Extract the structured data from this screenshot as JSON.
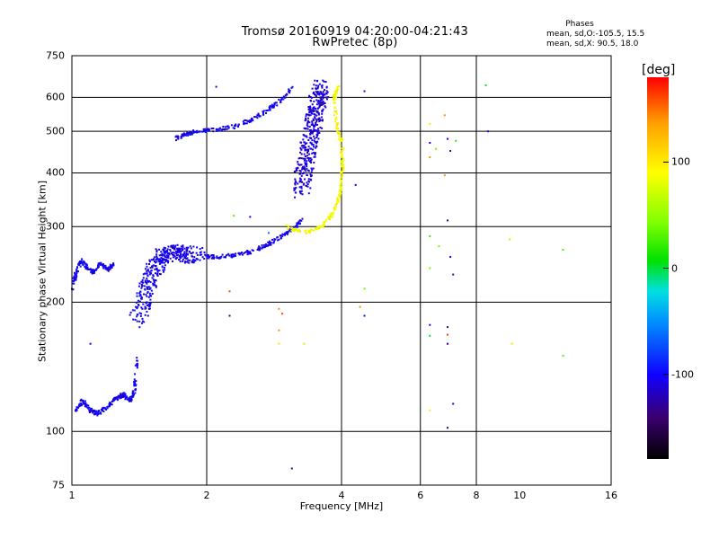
{
  "header": {
    "title_line1": "Tromsø 20160919 04:20:00-04:21:43",
    "title_line2": "RwPretec (8p)",
    "phases_title": "Phases",
    "phases_o": "mean, sd,O:-105.5, 15.5",
    "phases_x": "mean, sd,X:  90.5, 18.0"
  },
  "colorbar": {
    "title": "[deg]",
    "ticks": [
      "100",
      "0",
      "-100"
    ],
    "tick_values": [
      100,
      0,
      -100
    ],
    "range": [
      -180,
      180
    ],
    "colors": [
      "#000000",
      "#3a0070",
      "#1000ff",
      "#0090ff",
      "#00e0e0",
      "#00e000",
      "#80ff00",
      "#ffff00",
      "#ffa000",
      "#ff0000"
    ]
  },
  "chart_data": {
    "type": "scatter",
    "title": "Tromsø 20160919 04:20:00-04:21:43",
    "subtitle": "RwPretec (8p)",
    "xlabel": "Frequency [MHz]",
    "ylabel": "Stationary phase Virtual Height [km]",
    "x_scale": "log",
    "y_scale": "log",
    "xlim": [
      1,
      16
    ],
    "ylim": [
      75,
      750
    ],
    "x_ticks": [
      "1",
      "2",
      "4",
      "6",
      "8",
      "10",
      "16"
    ],
    "x_tick_values": [
      1,
      2,
      4,
      6,
      8,
      10,
      16
    ],
    "y_ticks": [
      "750",
      "600",
      "500",
      "400",
      "300",
      "200",
      "100",
      "75"
    ],
    "y_tick_values": [
      750,
      600,
      500,
      400,
      300,
      200,
      100,
      75
    ],
    "x_grid": [
      2,
      4,
      6,
      8
    ],
    "y_grid": [
      600,
      500,
      400,
      300,
      200,
      100
    ],
    "grid": true,
    "traces": [
      {
        "name": "E/Es low trace O",
        "phase": -105,
        "points": [
          [
            1.0,
            215
          ],
          [
            1.02,
            232
          ],
          [
            1.05,
            252
          ],
          [
            1.08,
            240
          ],
          [
            1.12,
            235
          ],
          [
            1.16,
            246
          ],
          [
            1.2,
            238
          ],
          [
            1.24,
            245
          ]
        ]
      },
      {
        "name": "low E trace",
        "phase": -105,
        "points": [
          [
            1.02,
            112
          ],
          [
            1.06,
            118
          ],
          [
            1.1,
            112
          ],
          [
            1.14,
            110
          ],
          [
            1.2,
            114
          ],
          [
            1.25,
            119
          ],
          [
            1.3,
            122
          ],
          [
            1.35,
            118
          ],
          [
            1.38,
            124
          ],
          [
            1.4,
            150
          ]
        ]
      },
      {
        "name": "F1 O cusp",
        "phase": -105,
        "points": [
          [
            1.4,
            178
          ],
          [
            1.45,
            205
          ],
          [
            1.5,
            228
          ],
          [
            1.55,
            246
          ],
          [
            1.6,
            258
          ],
          [
            1.7,
            262
          ],
          [
            1.8,
            258
          ],
          [
            1.9,
            256
          ]
        ]
      },
      {
        "name": "F2 O lower trace",
        "phase": -105,
        "points": [
          [
            1.95,
            256
          ],
          [
            2.1,
            255
          ],
          [
            2.3,
            257
          ],
          [
            2.5,
            262
          ],
          [
            2.7,
            270
          ],
          [
            2.9,
            282
          ],
          [
            3.1,
            296
          ],
          [
            3.3,
            312
          ]
        ]
      },
      {
        "name": "F2 O upper trace",
        "phase": -105,
        "points": [
          [
            1.7,
            480
          ],
          [
            1.8,
            492
          ],
          [
            1.9,
            500
          ],
          [
            2.1,
            505
          ],
          [
            2.3,
            512
          ],
          [
            2.5,
            530
          ],
          [
            2.7,
            555
          ],
          [
            2.9,
            585
          ],
          [
            3.1,
            630
          ]
        ]
      },
      {
        "name": "F2 O critical column",
        "phase": -110,
        "points": [
          [
            3.25,
            360
          ],
          [
            3.3,
            400
          ],
          [
            3.35,
            440
          ],
          [
            3.4,
            480
          ],
          [
            3.45,
            520
          ],
          [
            3.5,
            560
          ],
          [
            3.55,
            600
          ],
          [
            3.6,
            640
          ]
        ]
      },
      {
        "name": "F2 X trace",
        "phase": 90,
        "points": [
          [
            3.0,
            300
          ],
          [
            3.3,
            290
          ],
          [
            3.6,
            300
          ],
          [
            3.8,
            320
          ],
          [
            3.95,
            350
          ],
          [
            4.0,
            380
          ],
          [
            4.02,
            420
          ],
          [
            4.0,
            470
          ],
          [
            3.9,
            520
          ],
          [
            3.85,
            600
          ],
          [
            3.95,
            640
          ]
        ]
      }
    ],
    "scattered_points": [
      {
        "f": 6.3,
        "h": 520,
        "phase": 100
      },
      {
        "f": 6.3,
        "h": 470,
        "phase": -105
      },
      {
        "f": 6.5,
        "h": 455,
        "phase": 40
      },
      {
        "f": 6.3,
        "h": 435,
        "phase": 140
      },
      {
        "f": 6.8,
        "h": 545,
        "phase": 140
      },
      {
        "f": 6.9,
        "h": 480,
        "phase": -100
      },
      {
        "f": 7.0,
        "h": 450,
        "phase": -130
      },
      {
        "f": 7.2,
        "h": 475,
        "phase": 20
      },
      {
        "f": 6.8,
        "h": 395,
        "phase": 140
      },
      {
        "f": 8.4,
        "h": 640,
        "phase": 0
      },
      {
        "f": 8.5,
        "h": 500,
        "phase": -110
      },
      {
        "f": 4.5,
        "h": 620,
        "phase": -110
      },
      {
        "f": 2.1,
        "h": 635,
        "phase": -110
      },
      {
        "f": 4.3,
        "h": 375,
        "phase": -110
      },
      {
        "f": 6.3,
        "h": 285,
        "phase": 20
      },
      {
        "f": 6.9,
        "h": 310,
        "phase": -130
      },
      {
        "f": 6.6,
        "h": 270,
        "phase": 40
      },
      {
        "f": 7.0,
        "h": 255,
        "phase": -100
      },
      {
        "f": 6.3,
        "h": 240,
        "phase": 40
      },
      {
        "f": 7.1,
        "h": 232,
        "phase": -130
      },
      {
        "f": 9.5,
        "h": 280,
        "phase": 60
      },
      {
        "f": 12.5,
        "h": 265,
        "phase": 30
      },
      {
        "f": 4.5,
        "h": 215,
        "phase": 40
      },
      {
        "f": 2.25,
        "h": 212,
        "phase": 160
      },
      {
        "f": 2.25,
        "h": 186,
        "phase": -140
      },
      {
        "f": 2.9,
        "h": 193,
        "phase": 140
      },
      {
        "f": 2.95,
        "h": 188,
        "phase": 160
      },
      {
        "f": 2.9,
        "h": 172,
        "phase": 140
      },
      {
        "f": 2.9,
        "h": 160,
        "phase": 100
      },
      {
        "f": 3.3,
        "h": 160,
        "phase": 70
      },
      {
        "f": 4.4,
        "h": 195,
        "phase": 140
      },
      {
        "f": 4.5,
        "h": 186,
        "phase": -110
      },
      {
        "f": 6.3,
        "h": 177,
        "phase": -110
      },
      {
        "f": 6.9,
        "h": 175,
        "phase": -130
      },
      {
        "f": 6.9,
        "h": 168,
        "phase": 160
      },
      {
        "f": 6.3,
        "h": 167,
        "phase": 0
      },
      {
        "f": 6.9,
        "h": 160,
        "phase": -110
      },
      {
        "f": 9.6,
        "h": 160,
        "phase": 100
      },
      {
        "f": 12.5,
        "h": 150,
        "phase": 30
      },
      {
        "f": 6.3,
        "h": 112,
        "phase": 100
      },
      {
        "f": 7.1,
        "h": 116,
        "phase": -110
      },
      {
        "f": 6.9,
        "h": 102,
        "phase": -130
      },
      {
        "f": 3.1,
        "h": 82,
        "phase": -130
      },
      {
        "f": 2.5,
        "h": 316,
        "phase": -110
      },
      {
        "f": 2.3,
        "h": 318,
        "phase": 30
      },
      {
        "f": 2.75,
        "h": 290,
        "phase": -60
      },
      {
        "f": 1.1,
        "h": 160,
        "phase": -110
      }
    ]
  }
}
